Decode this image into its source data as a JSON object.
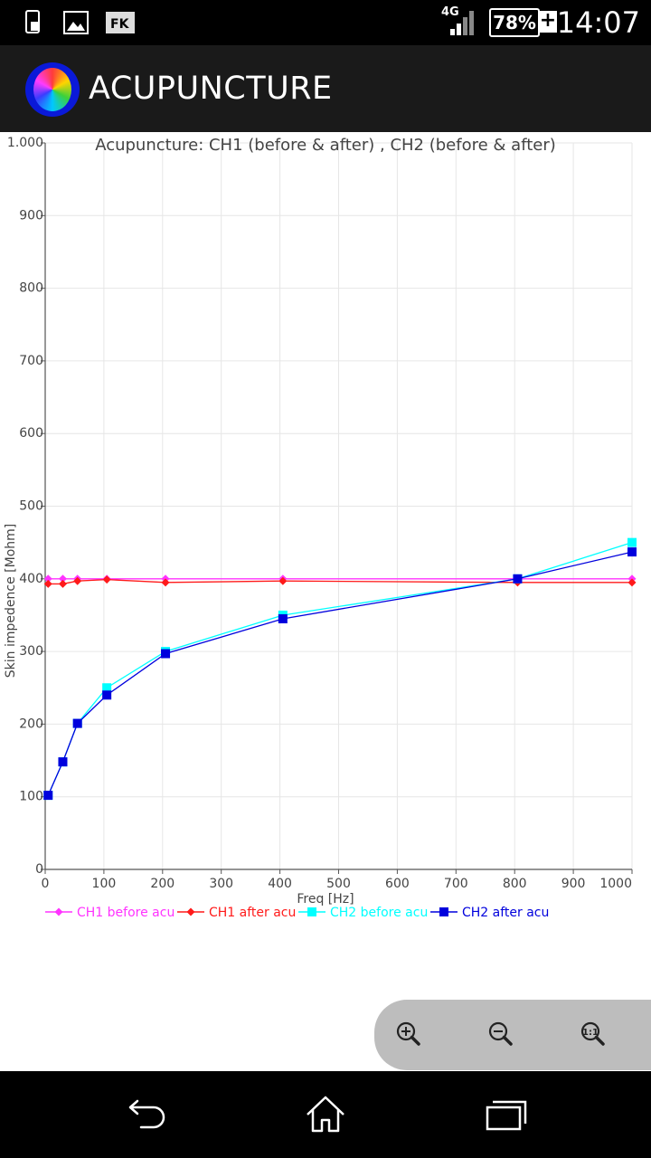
{
  "status_bar": {
    "time": "14:07",
    "battery": "78%",
    "charging": "+",
    "network": "4G",
    "icons": [
      "sim-card-icon",
      "image-icon",
      "fk-app-icon",
      "signal-icon",
      "battery-icon"
    ]
  },
  "action_bar": {
    "title": "ACUPUNCTURE",
    "logo_icon": "color-wheel-icon"
  },
  "chart_data": {
    "type": "line",
    "title": "Acupuncture: CH1 (before & after) , CH2 (before & after)",
    "xlabel": "Freq [Hz]",
    "ylabel": "Skin impedence [Mohm]",
    "xlim": [
      0,
      1000
    ],
    "ylim": [
      0,
      1000
    ],
    "x_ticks": [
      0,
      100,
      200,
      300,
      400,
      500,
      600,
      700,
      800,
      900,
      1000
    ],
    "x_tick_labels": [
      "0",
      "100",
      "200",
      "300",
      "400",
      "500",
      "600",
      "700",
      "800",
      "900",
      "1000"
    ],
    "y_ticks": [
      0,
      100,
      200,
      300,
      400,
      500,
      600,
      700,
      800,
      900,
      1000
    ],
    "y_tick_labels": [
      "0",
      "100",
      "200",
      "300",
      "400",
      "500",
      "600",
      "700",
      "800",
      "900",
      "1.000"
    ],
    "grid": true,
    "legend": "bottom",
    "series": [
      {
        "name": "CH1 before acu",
        "color": "#ff33ff",
        "marker": "diamond",
        "x": [
          5,
          30,
          55,
          105,
          205,
          405,
          805,
          1000
        ],
        "y": [
          400,
          400,
          400,
          400,
          400,
          400,
          400,
          400
        ]
      },
      {
        "name": "CH1 after acu",
        "color": "#ff1a1a",
        "marker": "diamond",
        "x": [
          5,
          30,
          55,
          105,
          205,
          405,
          805,
          1000
        ],
        "y": [
          393,
          393,
          397,
          399,
          395,
          397,
          395,
          395
        ]
      },
      {
        "name": "CH2 before acu",
        "color": "#00ffff",
        "marker": "square",
        "x": [
          5,
          30,
          55,
          105,
          205,
          405,
          805,
          1000
        ],
        "y": [
          102,
          148,
          201,
          250,
          300,
          350,
          400,
          450
        ]
      },
      {
        "name": "CH2 after acu",
        "color": "#0000dd",
        "marker": "square",
        "x": [
          5,
          30,
          55,
          105,
          205,
          405,
          805,
          1000
        ],
        "y": [
          102,
          148,
          201,
          240,
          297,
          345,
          400,
          437
        ]
      }
    ]
  },
  "zoom_controls": {
    "zoom_in_icon": "zoom-in-icon",
    "zoom_out_icon": "zoom-out-icon",
    "zoom_reset_icon": "zoom-reset-icon"
  },
  "nav_bar": {
    "icons": [
      "back-icon",
      "home-icon",
      "recents-icon"
    ]
  }
}
